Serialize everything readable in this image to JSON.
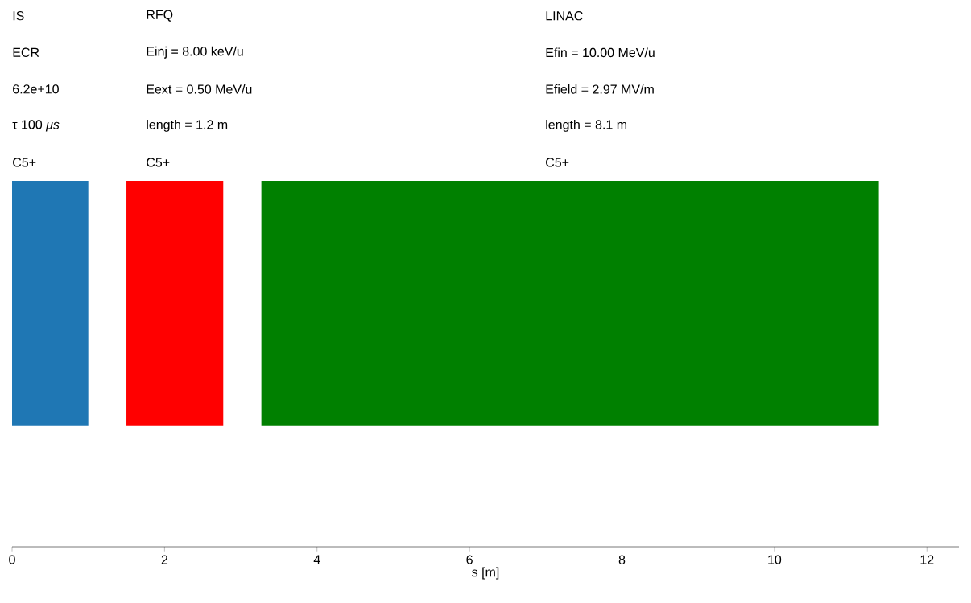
{
  "chart_data": {
    "type": "bar",
    "orientation": "horizontal",
    "categories": [
      null
    ],
    "xlabel": "s [m]",
    "xlim": [
      0,
      12.42
    ],
    "xticks": [
      0,
      2,
      4,
      6,
      8,
      10,
      12
    ],
    "series": [
      {
        "color": "#1f77b4",
        "values": [
          1.0
        ],
        "base": [
          0
        ]
      },
      {
        "color": "#ff0000",
        "values": [
          1.27
        ],
        "base": [
          1.5
        ]
      },
      {
        "color": "#008000",
        "values": [
          8.1
        ],
        "base": [
          3.27
        ]
      }
    ],
    "annotations": [
      "IS",
      "ECR",
      "6.2e+10",
      "τ 100 *μs*",
      "C5+",
      "RFQ",
      "Einj = 8.00 keV/u",
      "Eext = 0.50 MeV/u",
      "length = 1.2 m",
      "C5+",
      "LINAC",
      "Efin = 10.00 MeV/u",
      "Efield = 2.97 MV/m",
      "length = 8.1 m",
      "C5+"
    ]
  }
}
